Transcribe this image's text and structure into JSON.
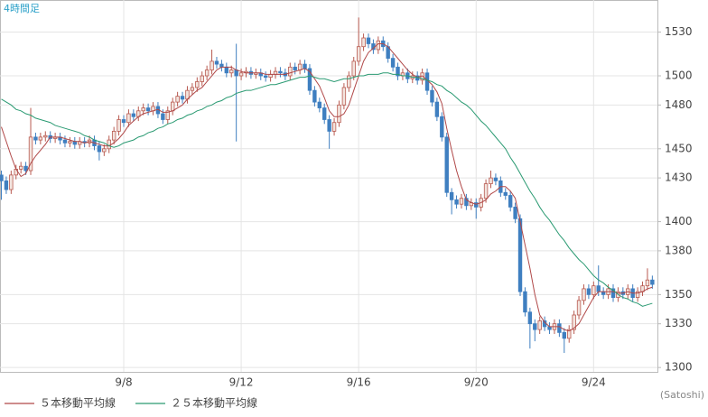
{
  "chart_data": {
    "type": "candlestick",
    "title": "4時間足",
    "source": "(Satoshi)",
    "categories": [
      null,
      null,
      null,
      null,
      null,
      null,
      null,
      null,
      null,
      null,
      null,
      null,
      null,
      null,
      null,
      null,
      null,
      null,
      null,
      null,
      null,
      null,
      null,
      null,
      null,
      "9/8",
      null,
      null,
      null,
      null,
      null,
      null,
      null,
      null,
      null,
      null,
      null,
      null,
      null,
      null,
      null,
      null,
      null,
      null,
      null,
      null,
      null,
      null,
      null,
      "9/12",
      null,
      null,
      null,
      null,
      null,
      null,
      null,
      null,
      null,
      null,
      null,
      null,
      null,
      null,
      null,
      null,
      null,
      null,
      null,
      null,
      null,
      null,
      null,
      "9/16",
      null,
      null,
      null,
      null,
      null,
      null,
      null,
      null,
      null,
      null,
      null,
      null,
      null,
      null,
      null,
      null,
      null,
      null,
      null,
      null,
      null,
      null,
      null,
      "9/20",
      null,
      null,
      null,
      null,
      null,
      null,
      null,
      null,
      null,
      null,
      null,
      null,
      null,
      null,
      null,
      null,
      null,
      null,
      null,
      null,
      null,
      null,
      null,
      "9/24",
      null,
      null,
      null,
      null,
      null,
      null,
      null,
      null,
      null,
      null,
      null,
      null
    ],
    "open": [
      1432,
      1428,
      1422,
      1432,
      1436,
      1438,
      1435,
      1458,
      1456,
      1458,
      1459,
      1457,
      1458,
      1456,
      1454,
      1455,
      1453,
      1455,
      1454,
      1456,
      1452,
      1448,
      1450,
      1456,
      1462,
      1470,
      1468,
      1474,
      1472,
      1476,
      1478,
      1476,
      1479,
      1474,
      1470,
      1476,
      1482,
      1486,
      1484,
      1490,
      1492,
      1496,
      1500,
      1504,
      1510,
      1508,
      1506,
      1502,
      1504,
      1500,
      1502,
      1503,
      1501,
      1502,
      1500,
      1499,
      1501,
      1503,
      1502,
      1500,
      1506,
      1504,
      1508,
      1505,
      1490,
      1482,
      1478,
      1470,
      1462,
      1468,
      1480,
      1492,
      1500,
      1510,
      1520,
      1526,
      1522,
      1518,
      1524,
      1520,
      1512,
      1506,
      1500,
      1502,
      1498,
      1500,
      1497,
      1502,
      1490,
      1482,
      1472,
      1458,
      1420,
      1415,
      1412,
      1416,
      1411,
      1413,
      1410,
      1416,
      1426,
      1430,
      1428,
      1420,
      1418,
      1410,
      1402,
      1352,
      1338,
      1330,
      1326,
      1332,
      1328,
      1326,
      1330,
      1324,
      1320,
      1326,
      1336,
      1346,
      1354,
      1350,
      1356,
      1352,
      1350,
      1354,
      1348,
      1352,
      1350,
      1354,
      1348,
      1352,
      1356,
      1360
    ],
    "high": [
      1435,
      1431,
      1435,
      1439,
      1441,
      1441,
      1478,
      1461,
      1461,
      1462,
      1462,
      1461,
      1461,
      1459,
      1458,
      1458,
      1458,
      1458,
      1459,
      1459,
      1455,
      1453,
      1459,
      1465,
      1473,
      1473,
      1477,
      1477,
      1479,
      1481,
      1481,
      1482,
      1482,
      1477,
      1479,
      1485,
      1489,
      1489,
      1493,
      1495,
      1499,
      1503,
      1507,
      1518,
      1513,
      1511,
      1509,
      1507,
      1522,
      1505,
      1506,
      1506,
      1505,
      1505,
      1503,
      1504,
      1506,
      1506,
      1505,
      1509,
      1509,
      1511,
      1511,
      1508,
      1493,
      1485,
      1481,
      1473,
      1471,
      1483,
      1495,
      1503,
      1513,
      1540,
      1529,
      1529,
      1525,
      1527,
      1527,
      1523,
      1515,
      1509,
      1505,
      1505,
      1503,
      1503,
      1505,
      1505,
      1493,
      1485,
      1475,
      1461,
      1423,
      1418,
      1419,
      1419,
      1416,
      1416,
      1419,
      1429,
      1435,
      1433,
      1431,
      1423,
      1421,
      1413,
      1405,
      1355,
      1341,
      1333,
      1335,
      1335,
      1331,
      1333,
      1333,
      1327,
      1329,
      1339,
      1349,
      1357,
      1357,
      1359,
      1370,
      1355,
      1357,
      1357,
      1355,
      1355,
      1357,
      1357,
      1355,
      1359,
      1368,
      1363
    ],
    "low": [
      1415,
      1419,
      1419,
      1429,
      1433,
      1432,
      1432,
      1453,
      1453,
      1455,
      1454,
      1454,
      1453,
      1451,
      1451,
      1450,
      1450,
      1451,
      1451,
      1449,
      1442,
      1445,
      1447,
      1453,
      1459,
      1465,
      1465,
      1469,
      1469,
      1473,
      1473,
      1473,
      1471,
      1467,
      1467,
      1473,
      1479,
      1481,
      1481,
      1487,
      1489,
      1493,
      1497,
      1501,
      1505,
      1503,
      1499,
      1499,
      1455,
      1497,
      1499,
      1498,
      1498,
      1497,
      1496,
      1496,
      1498,
      1499,
      1497,
      1497,
      1501,
      1501,
      1502,
      1487,
      1479,
      1475,
      1467,
      1450,
      1459,
      1465,
      1477,
      1489,
      1497,
      1507,
      1517,
      1519,
      1515,
      1515,
      1517,
      1509,
      1503,
      1497,
      1497,
      1495,
      1495,
      1494,
      1494,
      1487,
      1479,
      1469,
      1455,
      1417,
      1405,
      1409,
      1409,
      1408,
      1408,
      1402,
      1407,
      1413,
      1423,
      1425,
      1417,
      1415,
      1407,
      1399,
      1349,
      1335,
      1313,
      1318,
      1323,
      1325,
      1323,
      1323,
      1321,
      1310,
      1317,
      1323,
      1333,
      1343,
      1347,
      1347,
      1349,
      1347,
      1347,
      1345,
      1345,
      1347,
      1347,
      1345,
      1345,
      1349,
      1353,
      1354
    ],
    "close": [
      1428,
      1422,
      1432,
      1436,
      1438,
      1435,
      1458,
      1456,
      1458,
      1459,
      1457,
      1458,
      1456,
      1454,
      1455,
      1453,
      1455,
      1454,
      1456,
      1452,
      1448,
      1450,
      1456,
      1462,
      1470,
      1468,
      1474,
      1472,
      1476,
      1478,
      1476,
      1479,
      1474,
      1470,
      1476,
      1482,
      1486,
      1484,
      1490,
      1492,
      1496,
      1500,
      1504,
      1510,
      1508,
      1506,
      1502,
      1504,
      1500,
      1502,
      1503,
      1501,
      1502,
      1500,
      1499,
      1501,
      1503,
      1502,
      1500,
      1506,
      1504,
      1508,
      1505,
      1490,
      1482,
      1478,
      1470,
      1462,
      1468,
      1480,
      1492,
      1500,
      1510,
      1520,
      1526,
      1522,
      1518,
      1524,
      1520,
      1512,
      1506,
      1500,
      1502,
      1498,
      1500,
      1497,
      1502,
      1490,
      1482,
      1472,
      1458,
      1420,
      1415,
      1412,
      1416,
      1411,
      1413,
      1410,
      1416,
      1426,
      1430,
      1428,
      1420,
      1418,
      1410,
      1402,
      1352,
      1338,
      1330,
      1326,
      1332,
      1328,
      1326,
      1330,
      1324,
      1320,
      1326,
      1336,
      1346,
      1354,
      1350,
      1356,
      1352,
      1350,
      1354,
      1348,
      1352,
      1350,
      1354,
      1348,
      1352,
      1356,
      1360,
      1357
    ],
    "up_color": "#b85a50",
    "down_color": "#3f7fc0",
    "series": [
      {
        "name": "５本移動平均線",
        "color": "#b04848",
        "values": [
          1465,
          1455,
          1445,
          1436,
          1431,
          1433,
          1440,
          1445,
          1449,
          1453,
          1458,
          1458,
          1458,
          1457,
          1456,
          1455,
          1455,
          1454,
          1455,
          1454,
          1453,
          1452,
          1452,
          1454,
          1457,
          1461,
          1466,
          1469,
          1472,
          1474,
          1475,
          1476,
          1477,
          1475,
          1475,
          1476,
          1478,
          1480,
          1484,
          1487,
          1490,
          1492,
          1496,
          1500,
          1504,
          1506,
          1506,
          1506,
          1504,
          1503,
          1502,
          1502,
          1502,
          1502,
          1501,
          1501,
          1501,
          1501,
          1501,
          1502,
          1503,
          1504,
          1505,
          1503,
          1498,
          1493,
          1485,
          1476,
          1472,
          1472,
          1474,
          1480,
          1490,
          1500,
          1510,
          1516,
          1519,
          1522,
          1522,
          1520,
          1516,
          1512,
          1508,
          1504,
          1501,
          1499,
          1500,
          1497,
          1494,
          1489,
          1481,
          1464,
          1449,
          1435,
          1424,
          1415,
          1413,
          1412,
          1413,
          1415,
          1419,
          1421,
          1424,
          1424,
          1421,
          1416,
          1400,
          1384,
          1368,
          1350,
          1336,
          1331,
          1328,
          1328,
          1328,
          1326,
          1325,
          1327,
          1330,
          1336,
          1342,
          1348,
          1352,
          1352,
          1352,
          1352,
          1351,
          1351,
          1352,
          1351,
          1351,
          1352,
          1354,
          1355
        ]
      },
      {
        "name": "２５本移動平均線",
        "color": "#2a9a72",
        "values": [
          1484,
          1482,
          1480,
          1477,
          1476,
          1474,
          1473,
          1471,
          1470,
          1469,
          1468,
          1466,
          1465,
          1464,
          1463,
          1462,
          1461,
          1459,
          1458,
          1456,
          1455,
          1454,
          1452,
          1451,
          1452,
          1454,
          1455,
          1456,
          1458,
          1459,
          1461,
          1462,
          1464,
          1465,
          1467,
          1468,
          1470,
          1471,
          1473,
          1474,
          1476,
          1477,
          1479,
          1480,
          1482,
          1483,
          1485,
          1486,
          1488,
          1489,
          1490,
          1490,
          1491,
          1492,
          1493,
          1494,
          1494,
          1495,
          1496,
          1497,
          1498,
          1499,
          1499,
          1500,
          1499,
          1498,
          1498,
          1497,
          1496,
          1497,
          1498,
          1498,
          1499,
          1500,
          1500,
          1501,
          1501,
          1501,
          1502,
          1502,
          1501,
          1501,
          1500,
          1500,
          1499,
          1499,
          1498,
          1497,
          1496,
          1494,
          1493,
          1490,
          1488,
          1485,
          1482,
          1480,
          1477,
          1473,
          1469,
          1466,
          1462,
          1458,
          1454,
          1450,
          1444,
          1439,
          1433,
          1427,
          1421,
          1416,
          1410,
          1405,
          1401,
          1396,
          1391,
          1387,
          1382,
          1378,
          1374,
          1371,
          1367,
          1363,
          1360,
          1358,
          1355,
          1353,
          1350,
          1348,
          1347,
          1345,
          1344,
          1342,
          1343,
          1344
        ]
      }
    ],
    "ylim": [
      1297,
      1552
    ],
    "yticks": [
      1300,
      1330,
      1350,
      1380,
      1400,
      1430,
      1450,
      1480,
      1500,
      1530
    ],
    "grid": true
  }
}
